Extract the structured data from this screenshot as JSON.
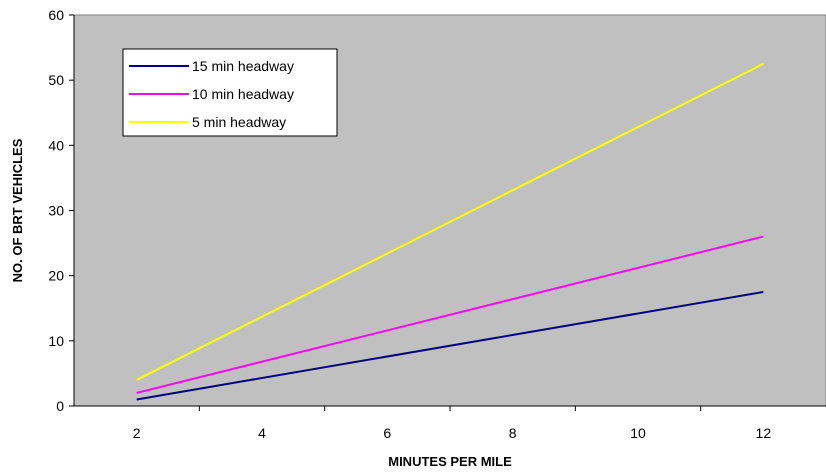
{
  "chart_data": {
    "type": "line",
    "title": "",
    "xlabel": "MINUTES PER MILE",
    "ylabel": "NO. OF BRT VEHICLES",
    "xlim": [
      1,
      13
    ],
    "ylim": [
      0,
      60
    ],
    "xticks": [
      2,
      4,
      6,
      8,
      10,
      12
    ],
    "yticks": [
      0,
      10,
      20,
      30,
      40,
      50,
      60
    ],
    "grid": false,
    "legend_position": "top-left",
    "plot_background": "#c0c0c0",
    "series": [
      {
        "name": "15 min headway",
        "color": "#000080",
        "x": [
          2,
          12
        ],
        "y": [
          1,
          17.5
        ]
      },
      {
        "name": "10 min headway",
        "color": "#ff00ff",
        "x": [
          2,
          12
        ],
        "y": [
          2,
          26
        ]
      },
      {
        "name": "5 min headway",
        "color": "#ffff00",
        "x": [
          2,
          12
        ],
        "y": [
          4,
          52.5
        ]
      }
    ]
  }
}
